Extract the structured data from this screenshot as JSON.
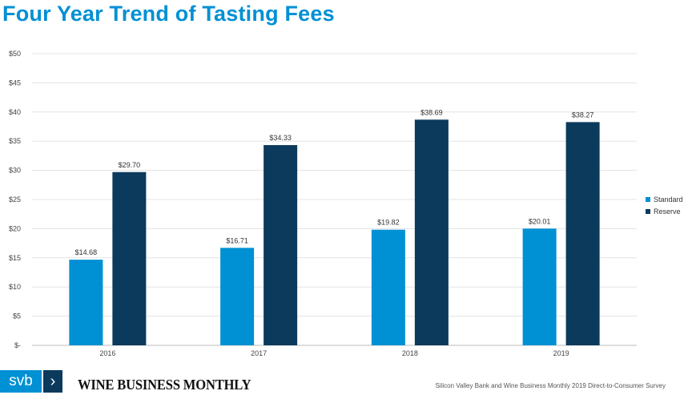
{
  "chart_data": {
    "type": "bar",
    "title": "Four Year Trend of Tasting Fees",
    "categories": [
      "2016",
      "2017",
      "2018",
      "2019"
    ],
    "series": [
      {
        "name": "Standard",
        "color": "#0090d4",
        "values": [
          14.68,
          16.71,
          19.82,
          20.01
        ],
        "labels": [
          "$14.68",
          "$16.71",
          "$19.82",
          "$20.01"
        ]
      },
      {
        "name": "Reserve",
        "color": "#0b3a5c",
        "values": [
          29.7,
          34.33,
          38.69,
          38.27
        ],
        "labels": [
          "$29.70",
          "$34.33",
          "$38.69",
          "$38.27"
        ]
      }
    ],
    "ylim": [
      0,
      50
    ],
    "yticks": [
      0,
      5,
      10,
      15,
      20,
      25,
      30,
      35,
      40,
      45,
      50
    ],
    "ytick_labels": [
      "$-",
      "$5",
      "$10",
      "$15",
      "$20",
      "$25",
      "$30",
      "$35",
      "$40",
      "$45",
      "$50"
    ],
    "grid": true,
    "legend_position": "right"
  },
  "footer": {
    "svb_text": "svb",
    "svb_arrow": "›",
    "publication": "WINE BUSINESS MONTHLY",
    "source": "Silicon Valley Bank and Wine Business Monthly 2019 Direct-to-Consumer Survey"
  }
}
